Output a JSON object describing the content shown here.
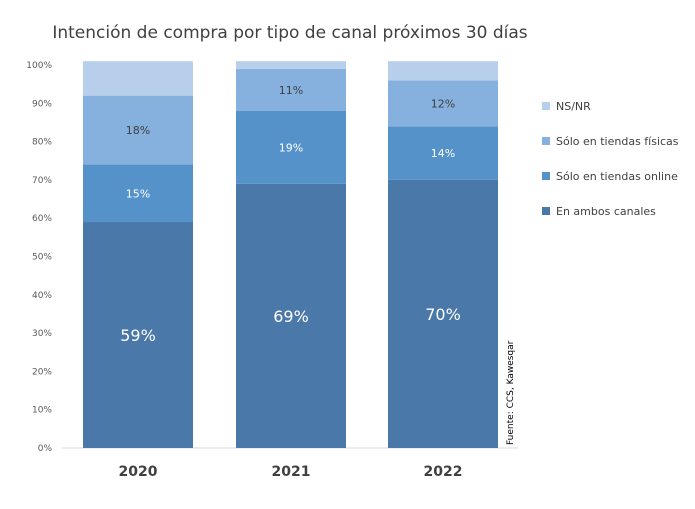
{
  "chart_data": {
    "type": "bar",
    "stacked": true,
    "title": "Intención de compra por tipo de canal próximos 30 días",
    "categories": [
      "2020",
      "2021",
      "2022"
    ],
    "y_ticks": [
      "0%",
      "10%",
      "20%",
      "30%",
      "40%",
      "50%",
      "60%",
      "70%",
      "80%",
      "90%",
      "100%"
    ],
    "ylim": [
      0,
      100
    ],
    "grid": false,
    "legend_position": "right",
    "series": [
      {
        "name": "En ambos canales",
        "color": "#4a78a8",
        "values": [
          59,
          69,
          70
        ],
        "labels": [
          "59%",
          "69%",
          "70%"
        ]
      },
      {
        "name": "Sólo en tiendas online",
        "color": "#5592c9",
        "values": [
          15,
          19,
          14
        ],
        "labels": [
          "15%",
          "19%",
          "14%"
        ]
      },
      {
        "name": "Sólo en tiendas físicas",
        "color": "#86b0de",
        "values": [
          18,
          11,
          12
        ],
        "labels": [
          "18%",
          "11%",
          "12%"
        ]
      },
      {
        "name": "NS/NR",
        "color": "#b8cfec",
        "values": [
          9,
          2,
          5
        ],
        "labels": [
          "",
          "",
          ""
        ]
      }
    ],
    "legend_order": [
      "NS/NR",
      "Sólo en tiendas físicas",
      "Sólo en tiendas online",
      "En ambos canales"
    ],
    "source": "Fuente: CCS, Kawesqar"
  }
}
